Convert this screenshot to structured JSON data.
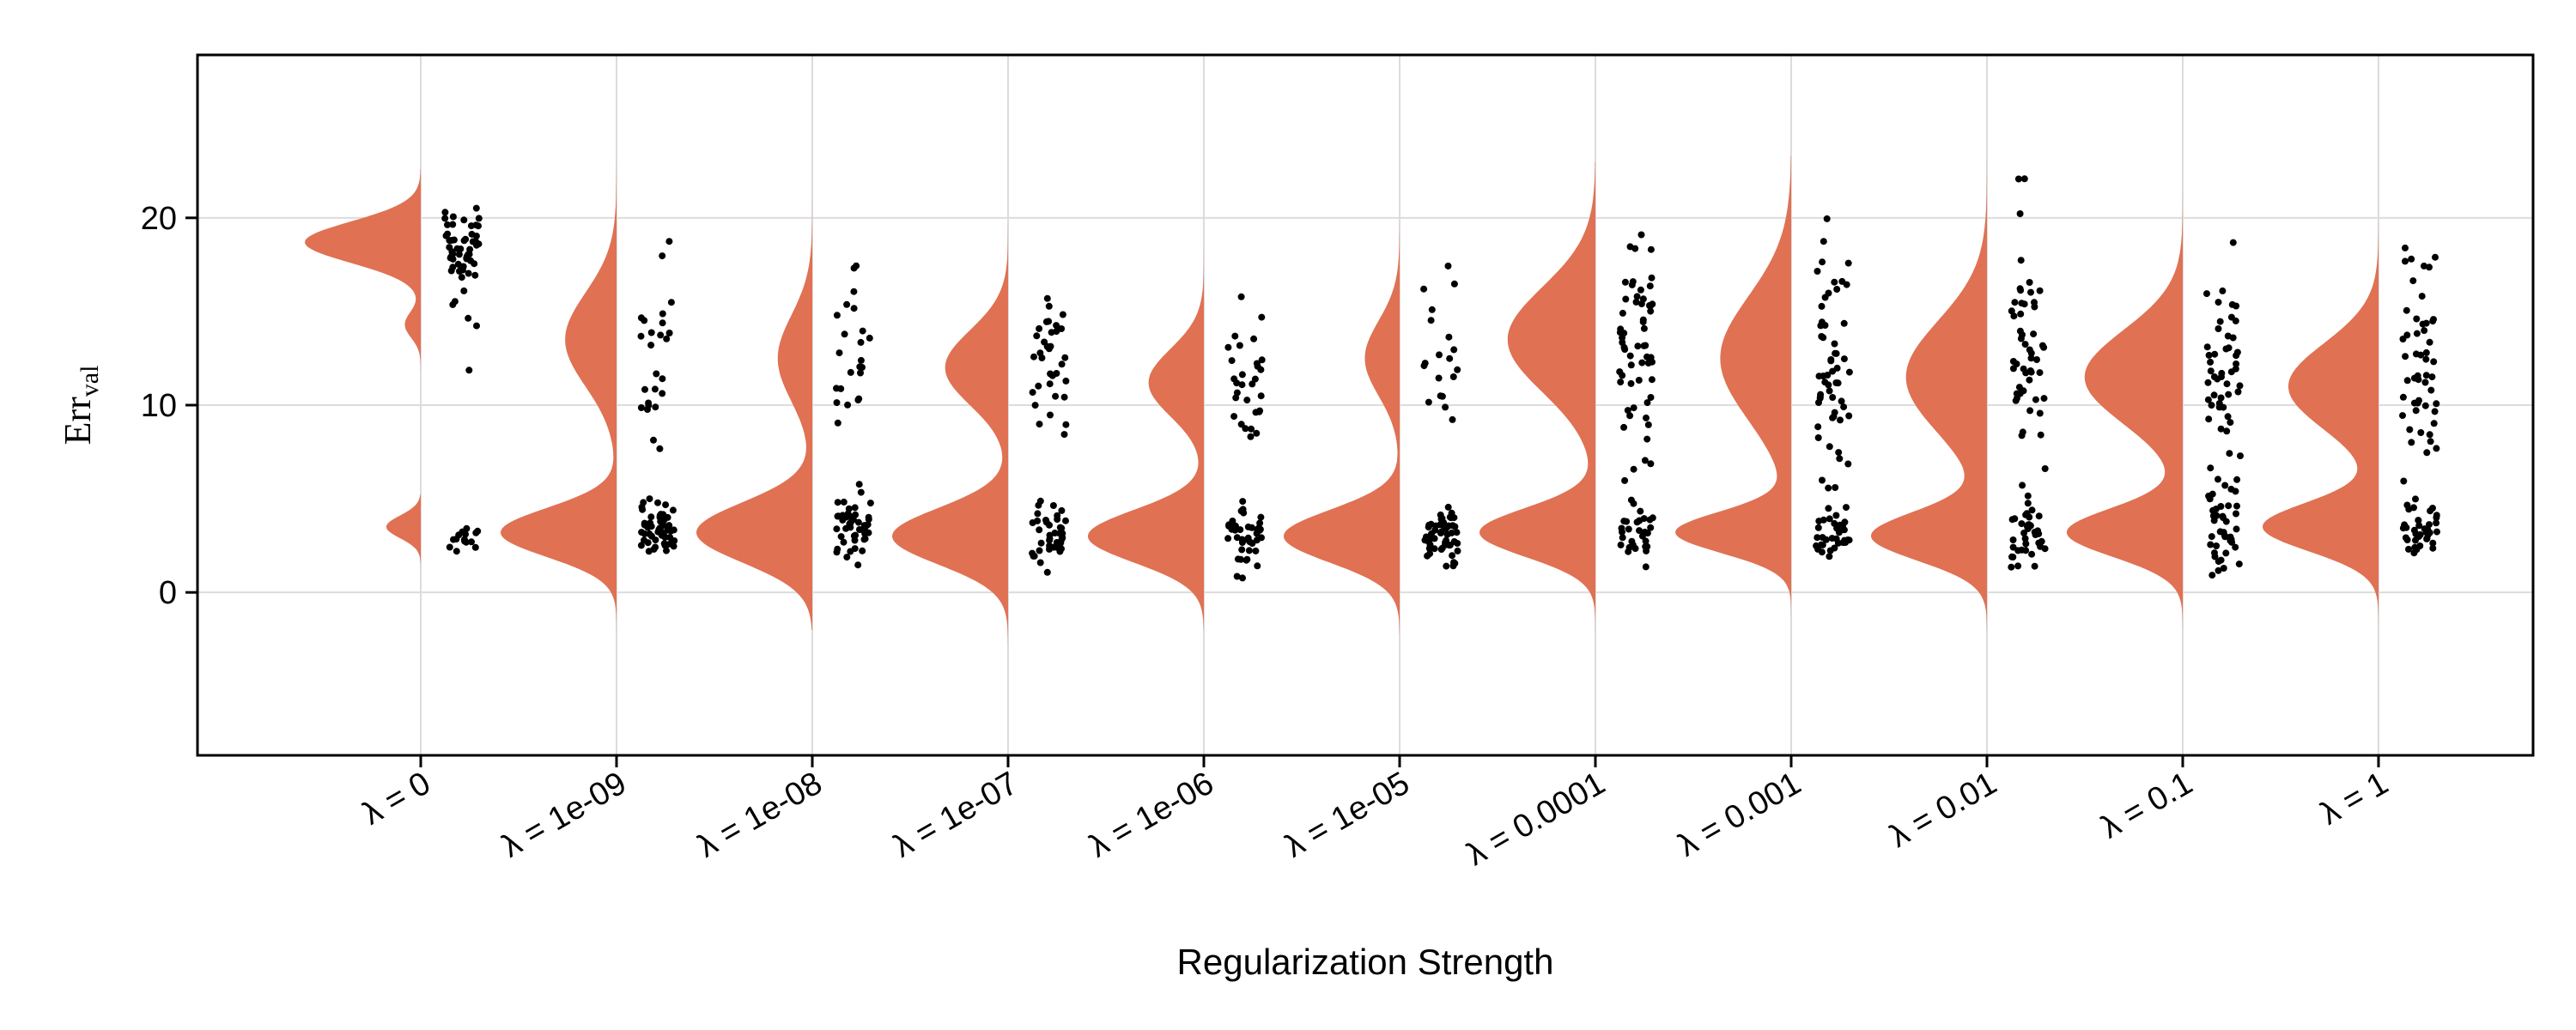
{
  "chart_data": {
    "type": "raincloud",
    "xlabel": "Regularization Strength",
    "ylabel": {
      "main": "Err",
      "subscript": "val"
    },
    "ylim": [
      -8.7,
      28.7
    ],
    "yticks": [
      0,
      10,
      20
    ],
    "grid": true,
    "fill_color": "#e07153",
    "point_color": "#000000",
    "categories": [
      "λ = 0",
      "λ = 1e-09",
      "λ = 1e-08",
      "λ = 1e-07",
      "λ = 1e-06",
      "λ = 1e-05",
      "λ = 0.0001",
      "λ = 0.001",
      "λ = 0.01",
      "λ = 0.1",
      "λ = 1"
    ],
    "groups": [
      {
        "range": [
          0.8,
          22.6
        ],
        "modes": [
          {
            "mu": 18.7,
            "sd": 1.1,
            "w": 0.8
          },
          {
            "mu": 14.3,
            "sd": 0.7,
            "w": 0.07
          },
          {
            "mu": 3.5,
            "sd": 0.6,
            "w": 0.13
          }
        ],
        "cutoff": [
          9.2,
          5.2
        ],
        "points": {
          "n": 72,
          "modes": [
            [
              18.3,
              1.1,
              0.8
            ],
            [
              14.0,
              1.8,
              0.08
            ],
            [
              3.0,
              0.5,
              0.12
            ]
          ]
        }
      },
      {
        "range": [
          -3.8,
          23.5
        ],
        "modes": [
          {
            "mu": 13.5,
            "sd": 2.5,
            "w": 0.46
          },
          {
            "mu": 3.2,
            "sd": 1.3,
            "w": 0.54
          }
        ],
        "points": {
          "n": 78,
          "modes": [
            [
              13.4,
              2.2,
              0.45
            ],
            [
              3.3,
              0.8,
              0.55
            ]
          ]
        }
      },
      {
        "range": [
          -2.0,
          21.0
        ],
        "modes": [
          {
            "mu": 12.5,
            "sd": 2.3,
            "w": 0.3
          },
          {
            "mu": 3.2,
            "sd": 1.6,
            "w": 0.7
          }
        ],
        "points": {
          "n": 72,
          "modes": [
            [
              12.8,
              2.2,
              0.28
            ],
            [
              3.2,
              0.9,
              0.72
            ]
          ]
        }
      },
      {
        "range": [
          -2.8,
          22.3
        ],
        "modes": [
          {
            "mu": 12.0,
            "sd": 2.0,
            "w": 0.42
          },
          {
            "mu": 3.0,
            "sd": 1.5,
            "w": 0.58
          }
        ],
        "points": {
          "n": 76,
          "modes": [
            [
              12.3,
              2.0,
              0.42
            ],
            [
              3.0,
              0.8,
              0.58
            ]
          ]
        }
      },
      {
        "range": [
          -2.0,
          19.5
        ],
        "modes": [
          {
            "mu": 11.2,
            "sd": 1.8,
            "w": 0.38
          },
          {
            "mu": 3.0,
            "sd": 1.4,
            "w": 0.62
          }
        ],
        "points": {
          "n": 72,
          "modes": [
            [
              11.0,
              1.8,
              0.38
            ],
            [
              3.0,
              0.8,
              0.62
            ]
          ]
        }
      },
      {
        "range": [
          -2.2,
          22.3
        ],
        "modes": [
          {
            "mu": 12.5,
            "sd": 2.0,
            "w": 0.3
          },
          {
            "mu": 3.0,
            "sd": 1.4,
            "w": 0.7
          }
        ],
        "points": {
          "n": 72,
          "modes": [
            [
              12.5,
              2.2,
              0.28
            ],
            [
              3.0,
              0.8,
              0.72
            ]
          ]
        }
      },
      {
        "range": [
          -3.7,
          23.0
        ],
        "modes": [
          {
            "mu": 13.5,
            "sd": 2.8,
            "w": 0.62
          },
          {
            "mu": 3.2,
            "sd": 1.3,
            "w": 0.38
          }
        ],
        "points": {
          "n": 90,
          "modes": [
            [
              13.0,
              3.2,
              0.6
            ],
            [
              3.0,
              0.8,
              0.4
            ]
          ]
        }
      },
      {
        "range": [
          -3.5,
          23.3
        ],
        "modes": [
          {
            "mu": 12.5,
            "sd": 3.3,
            "w": 0.65
          },
          {
            "mu": 3.2,
            "sd": 1.1,
            "w": 0.35
          }
        ],
        "points": {
          "n": 90,
          "modes": [
            [
              12.5,
              3.5,
              0.62
            ],
            [
              3.0,
              0.8,
              0.38
            ]
          ]
        }
      },
      {
        "range": [
          -3.7,
          23.5
        ],
        "modes": [
          {
            "mu": 11.5,
            "sd": 3.0,
            "w": 0.62
          },
          {
            "mu": 3.0,
            "sd": 1.3,
            "w": 0.38
          }
        ],
        "points": {
          "n": 90,
          "modes": [
            [
              12.5,
              3.3,
              0.62
            ],
            [
              3.0,
              1.0,
              0.38
            ]
          ]
        }
      },
      {
        "range": [
          -3.8,
          23.4
        ],
        "modes": [
          {
            "mu": 11.5,
            "sd": 2.5,
            "w": 0.62
          },
          {
            "mu": 3.2,
            "sd": 1.3,
            "w": 0.38
          }
        ],
        "points": {
          "n": 90,
          "modes": [
            [
              12.0,
              3.3,
              0.62
            ],
            [
              3.0,
              1.0,
              0.38
            ]
          ]
        }
      },
      {
        "range": [
          -2.8,
          23.3
        ],
        "modes": [
          {
            "mu": 11.0,
            "sd": 2.3,
            "w": 0.58
          },
          {
            "mu": 3.5,
            "sd": 1.3,
            "w": 0.42
          }
        ],
        "points": {
          "n": 90,
          "modes": [
            [
              12.0,
              3.0,
              0.62
            ],
            [
              3.2,
              0.8,
              0.38
            ]
          ]
        }
      }
    ]
  }
}
